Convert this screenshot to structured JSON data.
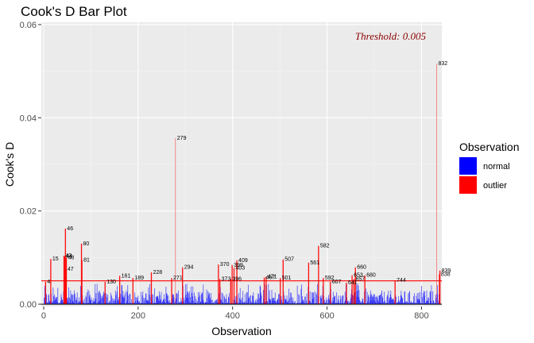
{
  "chart_data": {
    "type": "bar",
    "title": "Cook's D Bar Plot",
    "xlabel": "Observation",
    "ylabel": "Cook's D",
    "xlim": [
      -5,
      843
    ],
    "ylim": [
      -0.0005,
      0.0605
    ],
    "xticks": [
      0,
      200,
      400,
      600,
      800
    ],
    "yticks": [
      0.0,
      0.02,
      0.04,
      0.06
    ],
    "ytick_labels": [
      "0.00",
      "0.02",
      "0.04",
      "0.06"
    ],
    "threshold": 0.005,
    "annotation": "Threshold: 0.005",
    "legend": {
      "title": "Observation",
      "position": "right",
      "items": [
        {
          "label": "normal",
          "color": "#0000ff"
        },
        {
          "label": "outlier",
          "color": "#ff0000"
        }
      ]
    },
    "colors": {
      "normal": "#0000ff",
      "outlier": "#ff0000",
      "threshold": "#ff0000",
      "annotation": "#8b0000",
      "panel": "#ebebeb",
      "grid": "#ffffff"
    },
    "outliers": [
      {
        "x": 4,
        "y": 0.0048,
        "label": "4"
      },
      {
        "x": 15,
        "y": 0.0097,
        "label": "15"
      },
      {
        "x": 43,
        "y": 0.0104,
        "label": "43"
      },
      {
        "x": 44,
        "y": 0.0102,
        "label": "44"
      },
      {
        "x": 46,
        "y": 0.0162,
        "label": "46"
      },
      {
        "x": 47,
        "y": 0.0075,
        "label": "47"
      },
      {
        "x": 48,
        "y": 0.01,
        "label": "48"
      },
      {
        "x": 80,
        "y": 0.013,
        "label": "80"
      },
      {
        "x": 81,
        "y": 0.0095,
        "label": "81"
      },
      {
        "x": 130,
        "y": 0.0048,
        "label": "130"
      },
      {
        "x": 161,
        "y": 0.0061,
        "label": "161"
      },
      {
        "x": 189,
        "y": 0.0056,
        "label": "189"
      },
      {
        "x": 228,
        "y": 0.0068,
        "label": "228"
      },
      {
        "x": 271,
        "y": 0.0056,
        "label": "271"
      },
      {
        "x": 279,
        "y": 0.0356,
        "label": "279"
      },
      {
        "x": 294,
        "y": 0.0079,
        "label": "294"
      },
      {
        "x": 370,
        "y": 0.0085,
        "label": "370"
      },
      {
        "x": 373,
        "y": 0.0054,
        "label": "373"
      },
      {
        "x": 396,
        "y": 0.0054,
        "label": "396"
      },
      {
        "x": 399,
        "y": 0.0084,
        "label": "399"
      },
      {
        "x": 403,
        "y": 0.0078,
        "label": "403"
      },
      {
        "x": 409,
        "y": 0.0094,
        "label": "409"
      },
      {
        "x": 467,
        "y": 0.0057,
        "label": "467"
      },
      {
        "x": 471,
        "y": 0.0059,
        "label": "471"
      },
      {
        "x": 501,
        "y": 0.0056,
        "label": "501"
      },
      {
        "x": 507,
        "y": 0.0096,
        "label": "507"
      },
      {
        "x": 561,
        "y": 0.0089,
        "label": "561"
      },
      {
        "x": 582,
        "y": 0.0125,
        "label": "582"
      },
      {
        "x": 592,
        "y": 0.0056,
        "label": "592"
      },
      {
        "x": 607,
        "y": 0.0048,
        "label": "607"
      },
      {
        "x": 641,
        "y": 0.0046,
        "label": "641"
      },
      {
        "x": 653,
        "y": 0.0062,
        "label": "653"
      },
      {
        "x": 657,
        "y": 0.0054,
        "label": "657"
      },
      {
        "x": 660,
        "y": 0.0079,
        "label": "660"
      },
      {
        "x": 680,
        "y": 0.0062,
        "label": "680"
      },
      {
        "x": 744,
        "y": 0.0051,
        "label": "744"
      },
      {
        "x": 832,
        "y": 0.0516,
        "label": "832"
      },
      {
        "x": 838,
        "y": 0.0064,
        "label": "838"
      },
      {
        "x": 839,
        "y": 0.0072,
        "label": "839"
      }
    ]
  }
}
